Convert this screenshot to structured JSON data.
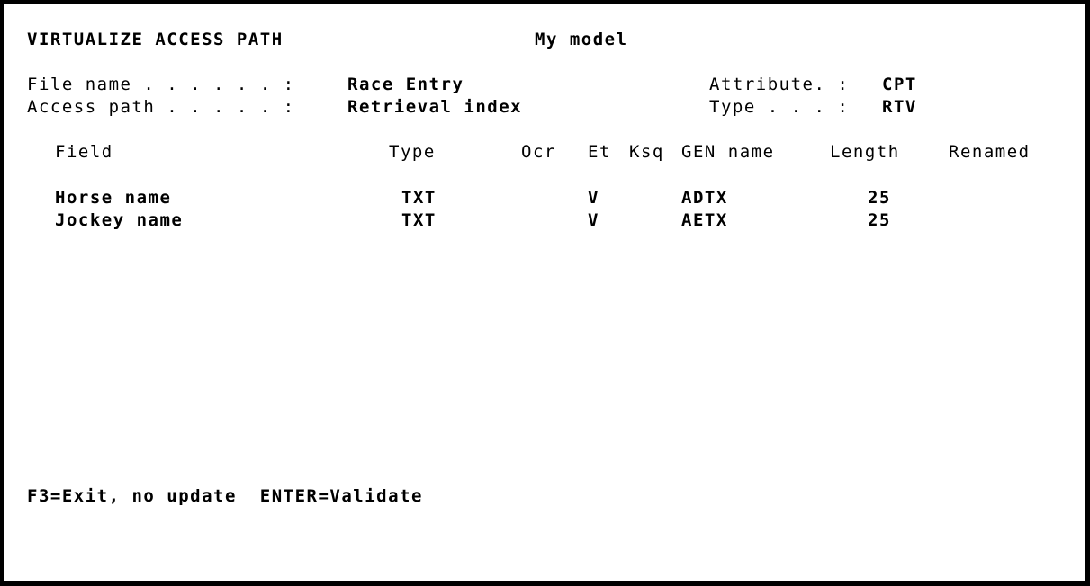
{
  "header": {
    "title": "VIRTUALIZE ACCESS PATH",
    "model": "My model"
  },
  "info": {
    "file_name_label": "File name . . . . . . :",
    "file_name_value": "Race Entry",
    "access_path_label": "Access path . . . . . :",
    "access_path_value": "Retrieval index",
    "attribute_label": "Attribute. :",
    "attribute_value": "CPT",
    "type_label": "Type . . . :",
    "type_value": "RTV"
  },
  "table": {
    "columns": {
      "field": "Field",
      "type": "Type",
      "ocr": "Ocr",
      "et": "Et",
      "ksq": "Ksq",
      "gen_name": "GEN name",
      "length": "Length",
      "renamed": "Renamed"
    },
    "rows": [
      {
        "field": "Horse name",
        "type": "TXT",
        "et": "V",
        "gen_name": "ADTX",
        "length": "25"
      },
      {
        "field": "Jockey name",
        "type": "TXT",
        "et": "V",
        "gen_name": "AETX",
        "length": "25"
      }
    ]
  },
  "footer": {
    "keys": "F3=Exit, no update  ENTER=Validate"
  }
}
